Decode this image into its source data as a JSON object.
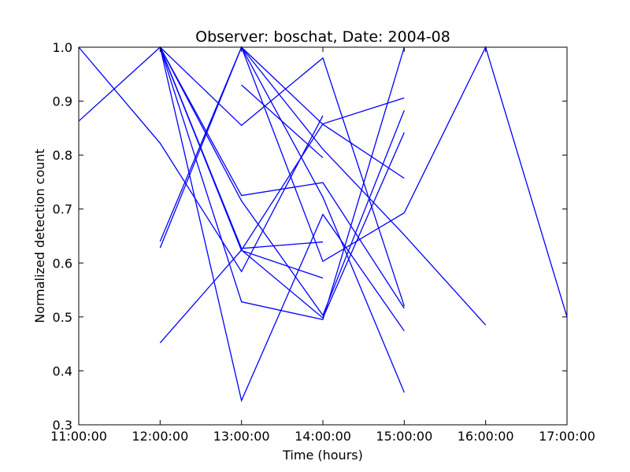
{
  "chart_data": {
    "type": "line",
    "title": "Observer: boschat, Date: 2004-08",
    "xlabel": "Time (hours)",
    "ylabel": "Normalized detection count",
    "x_ticks": [
      "11:00:00",
      "12:00:00",
      "13:00:00",
      "14:00:00",
      "15:00:00",
      "16:00:00",
      "17:00:00"
    ],
    "xlim": [
      "11:00:00",
      "17:00:00"
    ],
    "y_ticks": [
      "0.3",
      "0.4",
      "0.5",
      "0.6",
      "0.7",
      "0.8",
      "0.9",
      "1.0"
    ],
    "ylim": [
      0.3,
      1.0
    ],
    "line_color": "#0000ff",
    "grid": false,
    "legend": "none",
    "series": [
      {
        "x": [
          "11:00:00",
          "12:00:00",
          "13:00:00",
          "14:00:00"
        ],
        "y": [
          1.0,
          0.822,
          0.584,
          0.873
        ]
      },
      {
        "x": [
          "11:00:00",
          "12:00:00",
          "13:00:00",
          "14:00:00"
        ],
        "y": [
          0.863,
          1.0,
          0.627,
          0.639
        ]
      },
      {
        "x": [
          "12:00:00",
          "13:00:00",
          "14:00:00",
          "15:00:00"
        ],
        "y": [
          1.0,
          0.715,
          0.503,
          0.883
        ]
      },
      {
        "x": [
          "12:00:00",
          "13:00:00",
          "14:00:00",
          "15:00:00"
        ],
        "y": [
          1.0,
          0.725,
          0.749,
          0.516
        ]
      },
      {
        "x": [
          "12:00:00",
          "13:00:00",
          "14:00:00",
          "15:00:00"
        ],
        "y": [
          1.0,
          0.624,
          0.498,
          0.842
        ]
      },
      {
        "x": [
          "12:00:00",
          "13:00:00",
          "14:00:00",
          "15:00:00"
        ],
        "y": [
          1.0,
          0.528,
          0.495,
          1.0
        ]
      },
      {
        "x": [
          "12:00:00",
          "13:00:00",
          "14:00:00",
          "15:00:00"
        ],
        "y": [
          1.0,
          0.345,
          0.69,
          0.474
        ]
      },
      {
        "x": [
          "12:00:00",
          "13:00:00",
          "14:00:00"
        ],
        "y": [
          1.0,
          0.623,
          0.572
        ]
      },
      {
        "x": [
          "12:00:00",
          "13:00:00",
          "14:00:00",
          "15:00:00"
        ],
        "y": [
          1.0,
          0.855,
          0.98,
          0.52
        ]
      },
      {
        "x": [
          "12:00:00",
          "13:00:00",
          "14:00:00",
          "15:00:00"
        ],
        "y": [
          0.64,
          1.0,
          0.722,
          0.36
        ]
      },
      {
        "x": [
          "12:00:00",
          "13:00:00",
          "14:00:00",
          "15:00:00",
          "16:00:00",
          "17:00:00"
        ],
        "y": [
          0.628,
          1.0,
          0.603,
          0.693,
          1.0,
          0.5
        ]
      },
      {
        "x": [
          "12:00:00",
          "13:00:00",
          "14:00:00",
          "15:00:00"
        ],
        "y": [
          0.452,
          0.624,
          0.858,
          0.906
        ]
      },
      {
        "x": [
          "13:00:00",
          "14:00:00"
        ],
        "y": [
          0.93,
          0.795
        ]
      },
      {
        "x": [
          "13:00:00",
          "14:00:00",
          "15:00:00",
          "16:00:00"
        ],
        "y": [
          1.0,
          0.811,
          0.652,
          0.485
        ]
      },
      {
        "x": [
          "13:00:00",
          "14:00:00",
          "15:00:00"
        ],
        "y": [
          1.0,
          0.857,
          0.757
        ]
      }
    ]
  }
}
